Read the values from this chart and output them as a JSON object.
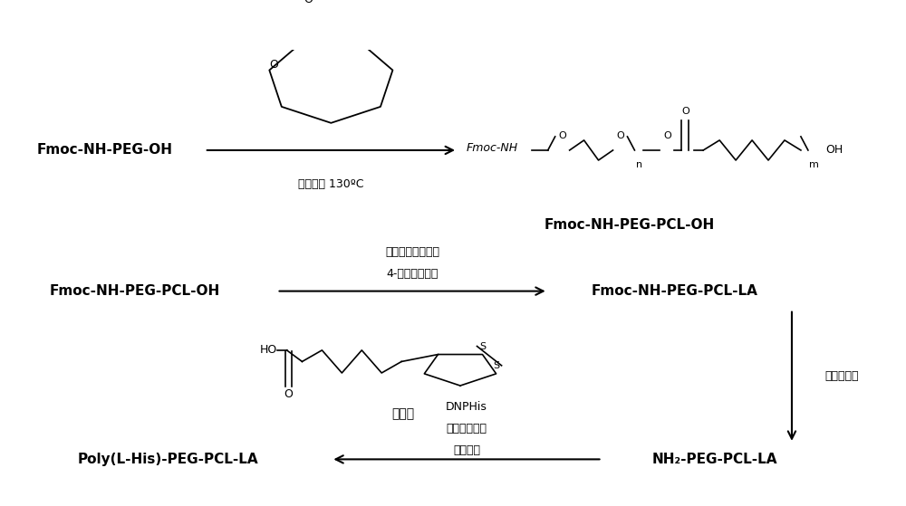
{
  "bg_color": "#ffffff",
  "fig_width": 10.0,
  "fig_height": 5.59,
  "step1_reactant": "Fmoc-NH-PEG-OH",
  "step1_product_label": "Fmoc-NH-PEG-PCL-OH",
  "step2_reactant": "Fmoc-NH-PEG-PCL-OH",
  "step2_product": "Fmoc-NH-PEG-PCL-LA",
  "deprotect_label": "氨基脱保护",
  "step3_product": "NH₂-PEG-PCL-LA",
  "step3_reactant": "Poly(L-His)-PEG-PCL-LA",
  "reagent_step1": "辛酸亚锡 130ºC",
  "reagent_step2a": "二环己基碳二亚胺",
  "reagent_step2b": "4-二甲氨基吡啶",
  "reagent_step3a": "DNPHis",
  "reagent_step3b": "二甲基甲酰胺",
  "reagent_step3c": "巯基乙醇",
  "lipoic_label": "硫辛酸"
}
